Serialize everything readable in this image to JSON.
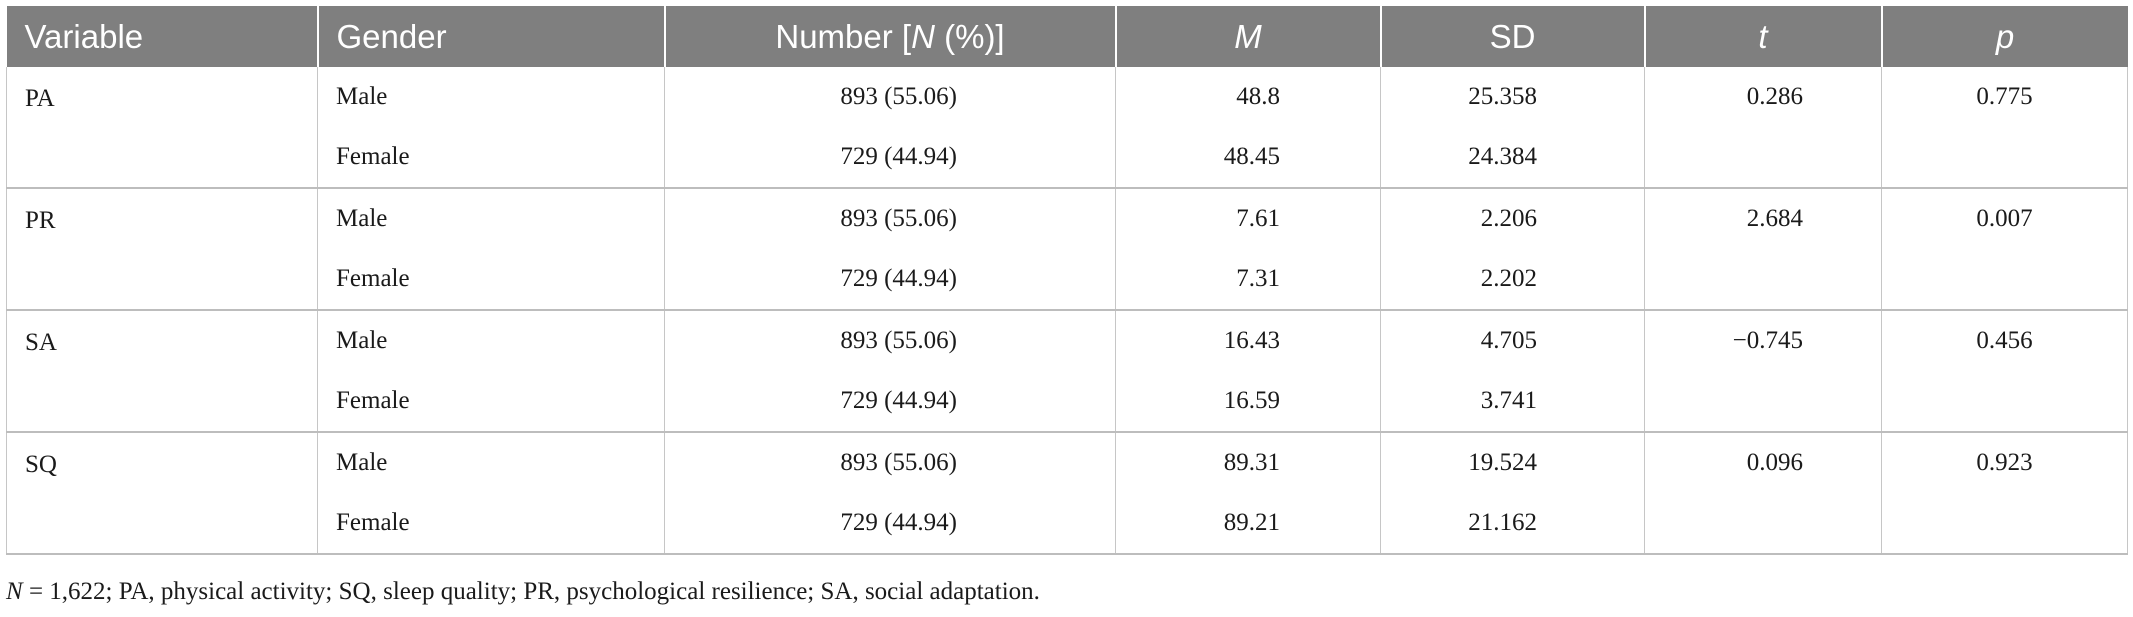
{
  "table": {
    "headers": {
      "variable": "Variable",
      "gender": "Gender",
      "number_prefix": "Number [",
      "number_italic": "N",
      "number_suffix": " (%)]",
      "m": "M",
      "sd": "SD",
      "t": "t",
      "p": "p"
    },
    "groups": [
      {
        "variable": "PA",
        "rows": [
          {
            "gender": "Male",
            "number": "893 (55.06)",
            "m": "48.8",
            "sd": "25.358",
            "t": "0.286",
            "p": "0.775"
          },
          {
            "gender": "Female",
            "number": "729 (44.94)",
            "m": "48.45",
            "sd": "24.384",
            "t": "",
            "p": ""
          }
        ]
      },
      {
        "variable": "PR",
        "rows": [
          {
            "gender": "Male",
            "number": "893 (55.06)",
            "m": "7.61",
            "sd": "2.206",
            "t": "2.684",
            "p": "0.007"
          },
          {
            "gender": "Female",
            "number": "729 (44.94)",
            "m": "7.31",
            "sd": "2.202",
            "t": "",
            "p": ""
          }
        ]
      },
      {
        "variable": "SA",
        "rows": [
          {
            "gender": "Male",
            "number": "893 (55.06)",
            "m": "16.43",
            "sd": "4.705",
            "t": "−0.745",
            "p": "0.456"
          },
          {
            "gender": "Female",
            "number": "729 (44.94)",
            "m": "16.59",
            "sd": "3.741",
            "t": "",
            "p": ""
          }
        ]
      },
      {
        "variable": "SQ",
        "rows": [
          {
            "gender": "Male",
            "number": "893 (55.06)",
            "m": "89.31",
            "sd": "19.524",
            "t": "0.096",
            "p": "0.923"
          },
          {
            "gender": "Female",
            "number": "729 (44.94)",
            "m": "89.21",
            "sd": "21.162",
            "t": "",
            "p": ""
          }
        ]
      }
    ]
  },
  "footnote": {
    "italic": "N",
    "text": " = 1,622; PA, physical activity; SQ, sleep quality; PR, psychological resilience; SA, social adaptation."
  }
}
